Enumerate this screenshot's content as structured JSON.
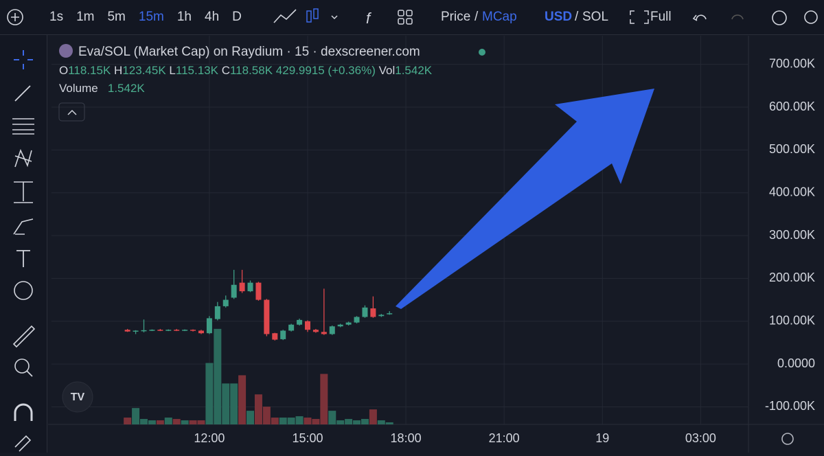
{
  "toolbar": {
    "intervals": [
      "1s",
      "1m",
      "5m",
      "15m",
      "1h",
      "4h",
      "D"
    ],
    "active_interval": "15m",
    "price_label": "Price",
    "separator": "/",
    "mcap_label": "MCap",
    "currency": "USD",
    "quote": "SOL",
    "full_label": "Full"
  },
  "legend": {
    "title": "Eva/SOL (Market Cap) on Raydium · 15 · dexscreener.com",
    "ohlc": [
      {
        "key": "O",
        "value": "118.15K"
      },
      {
        "key": "H",
        "value": "123.45K"
      },
      {
        "key": "L",
        "value": "115.13K"
      },
      {
        "key": "C",
        "value": "118.58K"
      }
    ],
    "change": "429.9915 (+0.36%)",
    "vol_key": "Vol",
    "vol_value": "1.542K",
    "volume_key": "Volume",
    "volume_value": "1.542K"
  },
  "chart_data": {
    "type": "candlestick",
    "x": [
      9.5,
      9.75,
      10,
      10.25,
      10.5,
      10.75,
      11,
      11.25,
      11.5,
      11.75,
      12,
      12.25,
      12.5,
      12.75,
      13,
      13.25,
      13.5,
      13.75,
      14,
      14.25,
      14.5,
      14.75,
      15,
      15.25,
      15.5,
      15.75,
      16,
      16.25,
      16.5,
      16.75,
      17,
      17.25,
      17.5
    ],
    "open": [
      80,
      76,
      77,
      79,
      80,
      79,
      80,
      79,
      80,
      78,
      72,
      105,
      135,
      155,
      190,
      170,
      190,
      150,
      72,
      58,
      78,
      92,
      100,
      80,
      75,
      70,
      88,
      92,
      97,
      110,
      130,
      112,
      118.15
    ],
    "high": [
      82,
      79,
      104,
      81,
      82,
      81,
      82,
      81,
      81,
      80,
      112,
      145,
      160,
      220,
      220,
      195,
      192,
      152,
      73,
      80,
      94,
      106,
      102,
      82,
      176,
      90,
      94,
      99,
      112,
      137,
      158,
      117,
      123.45
    ],
    "low": [
      75,
      70,
      74,
      77,
      77,
      77,
      77,
      77,
      76,
      70,
      70,
      102,
      132,
      152,
      166,
      168,
      148,
      65,
      55,
      56,
      76,
      90,
      75,
      73,
      68,
      68,
      86,
      90,
      95,
      108,
      108,
      110,
      115.13
    ],
    "close": [
      76,
      78,
      79,
      80,
      79,
      80,
      79,
      80,
      78,
      72,
      107,
      135,
      150,
      185,
      170,
      190,
      150,
      70,
      57,
      78,
      92,
      103,
      80,
      75,
      70,
      88,
      92,
      97,
      110,
      132,
      110,
      115,
      118.58
    ],
    "volume": [
      5,
      12,
      4,
      3,
      3,
      5,
      4,
      3,
      3,
      3,
      45,
      70,
      30,
      30,
      36,
      10,
      22,
      13,
      5,
      5,
      5,
      6,
      5,
      4,
      37,
      10,
      3,
      4,
      3,
      4,
      11,
      3,
      1.542
    ],
    "volume_ylim": [
      0,
      160
    ],
    "up_color": "#3d9d85",
    "down_color": "#e0474c",
    "volume_up_color": "#2b6b5d",
    "volume_down_color": "#7c3239",
    "xlim": [
      7.18,
      28.46
    ],
    "xticks": [
      {
        "value": 12,
        "label": "12:00"
      },
      {
        "value": 15,
        "label": "15:00"
      },
      {
        "value": 18,
        "label": "18:00"
      },
      {
        "value": 21,
        "label": "21:00"
      },
      {
        "value": 24,
        "label": "19"
      },
      {
        "value": 27,
        "label": "03:00"
      }
    ],
    "ylim": [
      -141,
      754
    ],
    "yticks": [
      {
        "value": -100,
        "label": "-100.00K"
      },
      {
        "value": 0,
        "label": "0.0000"
      },
      {
        "value": 100,
        "label": "100.00K"
      },
      {
        "value": 200,
        "label": "200.00K"
      },
      {
        "value": 300,
        "label": "300.00K"
      },
      {
        "value": 400,
        "label": "400.00K"
      },
      {
        "value": 500,
        "label": "500.00K"
      },
      {
        "value": 600,
        "label": "600.00K"
      },
      {
        "value": 700,
        "label": "700.00K"
      }
    ],
    "grid": true
  }
}
